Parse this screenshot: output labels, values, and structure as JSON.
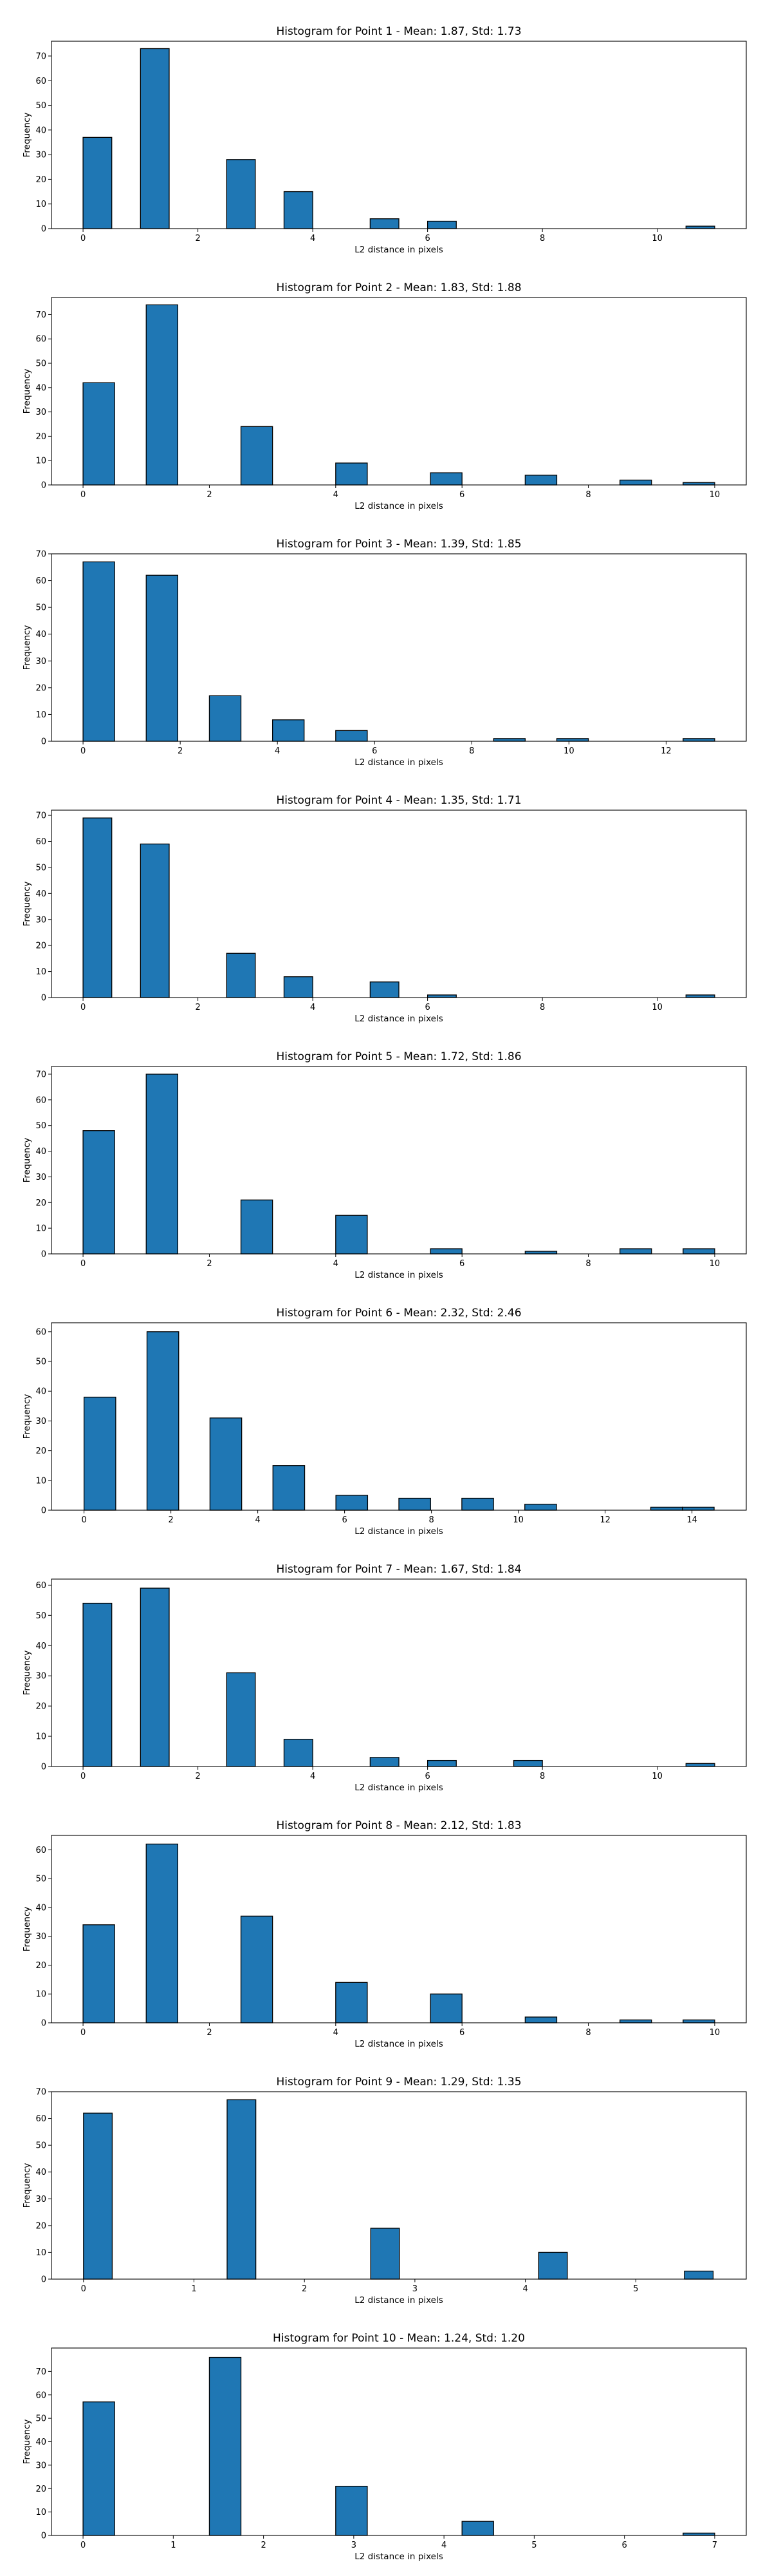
{
  "chart_data": [
    {
      "type": "bar",
      "title": "Histogram for Point 1 - Mean: 1.87, Std: 1.73",
      "xlabel": "L2 distance in pixels",
      "ylabel": "Frequency",
      "xlim": [
        -0.55,
        11.55
      ],
      "ylim": [
        0,
        76
      ],
      "xticks": [
        0,
        2,
        4,
        6,
        8,
        10
      ],
      "yticks": [
        0,
        10,
        20,
        30,
        40,
        50,
        60,
        70
      ],
      "bins": [
        {
          "x0": 0,
          "x1": 0.5,
          "value": 37
        },
        {
          "x0": 1,
          "x1": 1.5,
          "value": 73
        },
        {
          "x0": 2.5,
          "x1": 3.0,
          "value": 28
        },
        {
          "x0": 3.5,
          "x1": 4.0,
          "value": 15
        },
        {
          "x0": 5.0,
          "x1": 5.5,
          "value": 4
        },
        {
          "x0": 6.0,
          "x1": 6.5,
          "value": 3
        },
        {
          "x0": 10.5,
          "x1": 11.0,
          "value": 1
        }
      ],
      "bar_color": "#1f77b4",
      "edge_color": "#000000",
      "grid": false
    },
    {
      "type": "bar",
      "title": "Histogram for Point 2 - Mean: 1.83, Std: 1.88",
      "xlabel": "L2 distance in pixels",
      "ylabel": "Frequency",
      "xlim": [
        -0.5,
        10.5
      ],
      "ylim": [
        0,
        77
      ],
      "xticks": [
        0,
        2,
        4,
        6,
        8,
        10
      ],
      "yticks": [
        0,
        10,
        20,
        30,
        40,
        50,
        60,
        70
      ],
      "bins": [
        {
          "x0": 0,
          "x1": 0.5,
          "value": 42
        },
        {
          "x0": 1,
          "x1": 1.5,
          "value": 74
        },
        {
          "x0": 2.5,
          "x1": 3.0,
          "value": 24
        },
        {
          "x0": 4.0,
          "x1": 4.5,
          "value": 9
        },
        {
          "x0": 5.5,
          "x1": 6.0,
          "value": 5
        },
        {
          "x0": 7.0,
          "x1": 7.5,
          "value": 4
        },
        {
          "x0": 8.5,
          "x1": 9.0,
          "value": 2
        },
        {
          "x0": 9.5,
          "x1": 10.0,
          "value": 1
        }
      ],
      "bar_color": "#1f77b4",
      "edge_color": "#000000",
      "grid": false
    },
    {
      "type": "bar",
      "title": "Histogram for Point 3 - Mean: 1.39, Std: 1.85",
      "xlabel": "L2 distance in pixels",
      "ylabel": "Frequency",
      "xlim": [
        -0.65,
        13.65
      ],
      "ylim": [
        0,
        70
      ],
      "xticks": [
        0,
        2,
        4,
        6,
        8,
        10,
        12
      ],
      "yticks": [
        0,
        10,
        20,
        30,
        40,
        50,
        60,
        70
      ],
      "bins": [
        {
          "x0": 0,
          "x1": 0.65,
          "value": 67
        },
        {
          "x0": 1.3,
          "x1": 1.95,
          "value": 62
        },
        {
          "x0": 2.6,
          "x1": 3.25,
          "value": 17
        },
        {
          "x0": 3.9,
          "x1": 4.55,
          "value": 8
        },
        {
          "x0": 5.2,
          "x1": 5.85,
          "value": 4
        },
        {
          "x0": 8.45,
          "x1": 9.1,
          "value": 1
        },
        {
          "x0": 9.75,
          "x1": 10.4,
          "value": 1
        },
        {
          "x0": 12.35,
          "x1": 13.0,
          "value": 1
        }
      ],
      "bar_color": "#1f77b4",
      "edge_color": "#000000",
      "grid": false
    },
    {
      "type": "bar",
      "title": "Histogram for Point 4 - Mean: 1.35, Std: 1.71",
      "xlabel": "L2 distance in pixels",
      "ylabel": "Frequency",
      "xlim": [
        -0.55,
        11.55
      ],
      "ylim": [
        0,
        72
      ],
      "xticks": [
        0,
        2,
        4,
        6,
        8,
        10
      ],
      "yticks": [
        0,
        10,
        20,
        30,
        40,
        50,
        60,
        70
      ],
      "bins": [
        {
          "x0": 0,
          "x1": 0.5,
          "value": 69
        },
        {
          "x0": 1,
          "x1": 1.5,
          "value": 59
        },
        {
          "x0": 2.5,
          "x1": 3.0,
          "value": 17
        },
        {
          "x0": 3.5,
          "x1": 4.0,
          "value": 8
        },
        {
          "x0": 5.0,
          "x1": 5.5,
          "value": 6
        },
        {
          "x0": 6.0,
          "x1": 6.5,
          "value": 1
        },
        {
          "x0": 10.5,
          "x1": 11.0,
          "value": 1
        }
      ],
      "bar_color": "#1f77b4",
      "edge_color": "#000000",
      "grid": false
    },
    {
      "type": "bar",
      "title": "Histogram for Point 5 - Mean: 1.72, Std: 1.86",
      "xlabel": "L2 distance in pixels",
      "ylabel": "Frequency",
      "xlim": [
        -0.5,
        10.5
      ],
      "ylim": [
        0,
        73
      ],
      "xticks": [
        0,
        2,
        4,
        6,
        8,
        10
      ],
      "yticks": [
        0,
        10,
        20,
        30,
        40,
        50,
        60,
        70
      ],
      "bins": [
        {
          "x0": 0,
          "x1": 0.5,
          "value": 48
        },
        {
          "x0": 1,
          "x1": 1.5,
          "value": 70
        },
        {
          "x0": 2.5,
          "x1": 3.0,
          "value": 21
        },
        {
          "x0": 4.0,
          "x1": 4.5,
          "value": 15
        },
        {
          "x0": 5.5,
          "x1": 6.0,
          "value": 2
        },
        {
          "x0": 7.0,
          "x1": 7.5,
          "value": 1
        },
        {
          "x0": 8.5,
          "x1": 9.0,
          "value": 2
        },
        {
          "x0": 9.5,
          "x1": 10.0,
          "value": 2
        }
      ],
      "bar_color": "#1f77b4",
      "edge_color": "#000000",
      "grid": false
    },
    {
      "type": "bar",
      "title": "Histogram for Point 6 - Mean: 2.32, Std: 2.46",
      "xlabel": "L2 distance in pixels",
      "ylabel": "Frequency",
      "xlim": [
        -0.75,
        15.25
      ],
      "ylim": [
        0,
        63
      ],
      "xticks": [
        0,
        2,
        4,
        6,
        8,
        10,
        12,
        14
      ],
      "yticks": [
        0,
        10,
        20,
        30,
        40,
        50,
        60
      ],
      "bins": [
        {
          "x0": 0,
          "x1": 0.73,
          "value": 38
        },
        {
          "x0": 1.45,
          "x1": 2.18,
          "value": 60
        },
        {
          "x0": 2.9,
          "x1": 3.63,
          "value": 31
        },
        {
          "x0": 4.35,
          "x1": 5.08,
          "value": 15
        },
        {
          "x0": 5.8,
          "x1": 6.53,
          "value": 5
        },
        {
          "x0": 7.25,
          "x1": 7.98,
          "value": 4
        },
        {
          "x0": 8.7,
          "x1": 9.43,
          "value": 4
        },
        {
          "x0": 10.15,
          "x1": 10.88,
          "value": 2
        },
        {
          "x0": 13.05,
          "x1": 13.78,
          "value": 1
        },
        {
          "x0": 13.78,
          "x1": 14.51,
          "value": 1
        }
      ],
      "bar_color": "#1f77b4",
      "edge_color": "#000000",
      "grid": false
    },
    {
      "type": "bar",
      "title": "Histogram for Point 7 - Mean: 1.67, Std: 1.84",
      "xlabel": "L2 distance in pixels",
      "ylabel": "Frequency",
      "xlim": [
        -0.55,
        11.55
      ],
      "ylim": [
        0,
        62
      ],
      "xticks": [
        0,
        2,
        4,
        6,
        8,
        10
      ],
      "yticks": [
        0,
        10,
        20,
        30,
        40,
        50,
        60
      ],
      "bins": [
        {
          "x0": 0,
          "x1": 0.5,
          "value": 54
        },
        {
          "x0": 1,
          "x1": 1.5,
          "value": 59
        },
        {
          "x0": 2.5,
          "x1": 3.0,
          "value": 31
        },
        {
          "x0": 3.5,
          "x1": 4.0,
          "value": 9
        },
        {
          "x0": 5.0,
          "x1": 5.5,
          "value": 3
        },
        {
          "x0": 6.0,
          "x1": 6.5,
          "value": 2
        },
        {
          "x0": 7.5,
          "x1": 8.0,
          "value": 2
        },
        {
          "x0": 10.5,
          "x1": 11.0,
          "value": 1
        }
      ],
      "bar_color": "#1f77b4",
      "edge_color": "#000000",
      "grid": false
    },
    {
      "type": "bar",
      "title": "Histogram for Point 8 - Mean: 2.12, Std: 1.83",
      "xlabel": "L2 distance in pixels",
      "ylabel": "Frequency",
      "xlim": [
        -0.5,
        10.5
      ],
      "ylim": [
        0,
        65
      ],
      "xticks": [
        0,
        2,
        4,
        6,
        8,
        10
      ],
      "yticks": [
        0,
        10,
        20,
        30,
        40,
        50,
        60
      ],
      "bins": [
        {
          "x0": 0,
          "x1": 0.5,
          "value": 34
        },
        {
          "x0": 1,
          "x1": 1.5,
          "value": 62
        },
        {
          "x0": 2.5,
          "x1": 3.0,
          "value": 37
        },
        {
          "x0": 4.0,
          "x1": 4.5,
          "value": 14
        },
        {
          "x0": 5.5,
          "x1": 6.0,
          "value": 10
        },
        {
          "x0": 7.0,
          "x1": 7.5,
          "value": 2
        },
        {
          "x0": 8.5,
          "x1": 9.0,
          "value": 1
        },
        {
          "x0": 9.5,
          "x1": 10.0,
          "value": 1
        }
      ],
      "bar_color": "#1f77b4",
      "edge_color": "#000000",
      "grid": false
    },
    {
      "type": "bar",
      "title": "Histogram for Point 9 - Mean: 1.29, Std: 1.35",
      "xlabel": "L2 distance in pixels",
      "ylabel": "Frequency",
      "xlim": [
        -0.29,
        6.0
      ],
      "ylim": [
        0,
        70
      ],
      "xticks": [
        0,
        1,
        2,
        3,
        4,
        5
      ],
      "yticks": [
        0,
        10,
        20,
        30,
        40,
        50,
        60,
        70
      ],
      "bins": [
        {
          "x0": 0,
          "x1": 0.26,
          "value": 62
        },
        {
          "x0": 1.3,
          "x1": 1.56,
          "value": 67
        },
        {
          "x0": 2.6,
          "x1": 2.86,
          "value": 19
        },
        {
          "x0": 4.12,
          "x1": 4.38,
          "value": 10
        },
        {
          "x0": 5.44,
          "x1": 5.7,
          "value": 3
        }
      ],
      "bar_color": "#1f77b4",
      "edge_color": "#000000",
      "grid": false
    },
    {
      "type": "bar",
      "title": "Histogram for Point 10 - Mean: 1.24, Std: 1.20",
      "xlabel": "L2 distance in pixels",
      "ylabel": "Frequency",
      "xlim": [
        -0.35,
        7.35
      ],
      "ylim": [
        0,
        80
      ],
      "xticks": [
        0,
        1,
        2,
        3,
        4,
        5,
        6,
        7
      ],
      "yticks": [
        0,
        10,
        20,
        30,
        40,
        50,
        60,
        70
      ],
      "bins": [
        {
          "x0": 0,
          "x1": 0.35,
          "value": 57
        },
        {
          "x0": 1.4,
          "x1": 1.75,
          "value": 76
        },
        {
          "x0": 2.8,
          "x1": 3.15,
          "value": 21
        },
        {
          "x0": 4.2,
          "x1": 4.55,
          "value": 6
        },
        {
          "x0": 6.65,
          "x1": 7.0,
          "value": 1
        }
      ],
      "bar_color": "#1f77b4",
      "edge_color": "#000000",
      "grid": false
    }
  ]
}
